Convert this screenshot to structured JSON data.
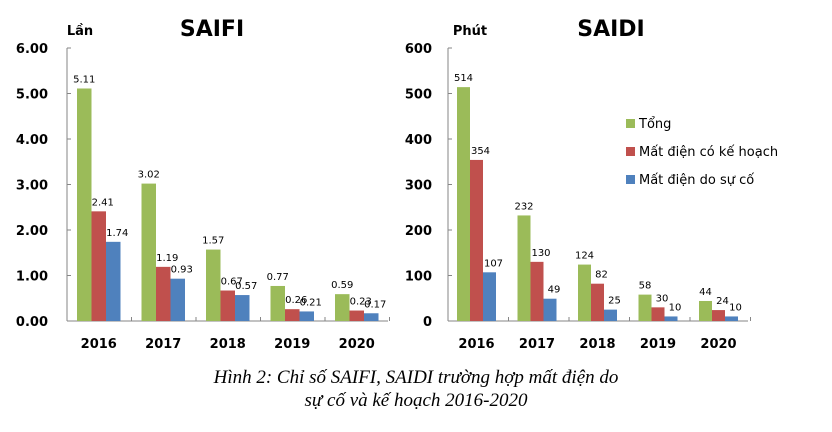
{
  "colors": {
    "series": [
      "#9bbb59",
      "#c0504d",
      "#4f81bd"
    ],
    "axis": "#868686"
  },
  "chart_data": [
    {
      "type": "bar",
      "title": "SAIFI",
      "ylabel": "Lần",
      "xlabel": "",
      "ylim": [
        0,
        6
      ],
      "yticks": [
        "0.00",
        "1.00",
        "2.00",
        "3.00",
        "4.00",
        "5.00",
        "6.00"
      ],
      "categories": [
        "2016",
        "2017",
        "2018",
        "2019",
        "2020"
      ],
      "series": [
        {
          "name": "Tổng",
          "values": [
            5.11,
            3.02,
            1.57,
            0.77,
            0.59
          ],
          "labels": [
            "5.11",
            "3.02",
            "1.57",
            "0.77",
            "0.59"
          ]
        },
        {
          "name": "Mất điện có kế hoạch",
          "values": [
            2.41,
            1.19,
            0.67,
            0.26,
            0.23
          ],
          "labels": [
            "2.41",
            "1.19",
            "0.67",
            "0.26",
            "0.23"
          ]
        },
        {
          "name": "Mất điện do sự cố",
          "values": [
            1.74,
            0.93,
            0.57,
            0.21,
            0.17
          ],
          "labels": [
            "1.74",
            "0.93",
            "0.57",
            "0.21",
            "0.17"
          ]
        }
      ],
      "grid": false,
      "legend": "none"
    },
    {
      "type": "bar",
      "title": "SAIDI",
      "ylabel": "Phút",
      "xlabel": "",
      "ylim": [
        0,
        600
      ],
      "yticks": [
        "0",
        "100",
        "200",
        "300",
        "400",
        "500",
        "600"
      ],
      "categories": [
        "2016",
        "2017",
        "2018",
        "2019",
        "2020"
      ],
      "series": [
        {
          "name": "Tổng",
          "values": [
            514,
            232,
            124,
            58,
            44
          ],
          "labels": [
            "514",
            "232",
            "124",
            "58",
            "44"
          ]
        },
        {
          "name": "Mất điện có kế hoạch",
          "values": [
            354,
            130,
            82,
            30,
            24
          ],
          "labels": [
            "354",
            "130",
            "82",
            "30",
            "24"
          ]
        },
        {
          "name": "Mất điện do sự cố",
          "values": [
            107,
            49,
            25,
            10,
            10
          ],
          "labels": [
            "107",
            "49",
            "25",
            "10",
            "10"
          ]
        }
      ],
      "grid": false,
      "legend": "right"
    }
  ],
  "caption": {
    "line1": "Hình 2: Chỉ số SAIFI, SAIDI trường hợp mất điện do",
    "line2": "sự cố và kế hoạch 2016-2020"
  }
}
